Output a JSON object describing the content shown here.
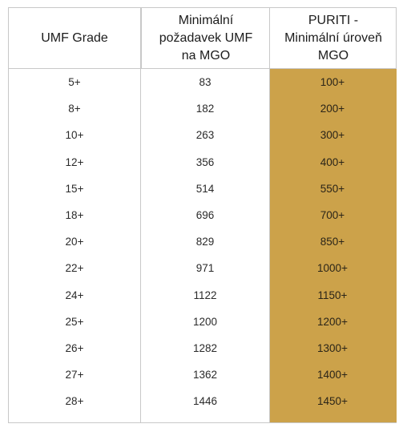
{
  "table": {
    "headers": [
      "UMF Grade",
      "Minimální\npožadavek UMF\nna MGO",
      "PURITI -\nMinimální úroveň\nMGO"
    ],
    "rows": [
      [
        "5+",
        "83",
        "100+"
      ],
      [
        "8+",
        "182",
        "200+"
      ],
      [
        "10+",
        "263",
        "300+"
      ],
      [
        "12+",
        "356",
        "400+"
      ],
      [
        "15+",
        "514",
        "550+"
      ],
      [
        "18+",
        "696",
        "700+"
      ],
      [
        "20+",
        "829",
        "850+"
      ],
      [
        "22+",
        "971",
        "1000+"
      ],
      [
        "24+",
        "1122",
        "1150+"
      ],
      [
        "25+",
        "1200",
        "1200+"
      ],
      [
        "26+",
        "1282",
        "1300+"
      ],
      [
        "27+",
        "1362",
        "1400+"
      ],
      [
        "28+",
        "1446",
        "1450+"
      ]
    ],
    "highlight_color": "#cca24a",
    "border_color": "#c8c8c8"
  }
}
